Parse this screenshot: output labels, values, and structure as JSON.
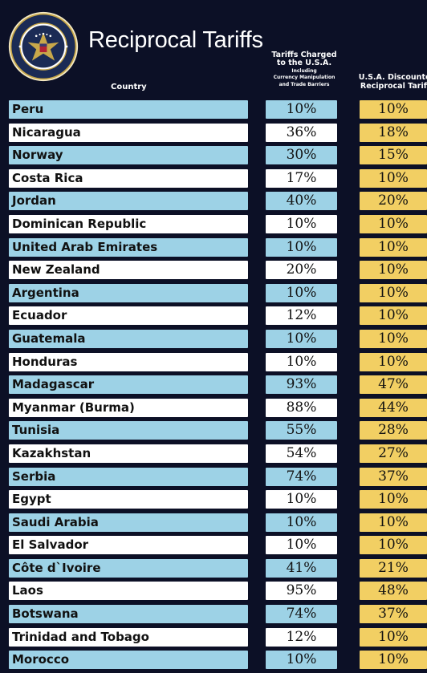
{
  "header": {
    "title": "Reciprocal Tariffs",
    "seal_text": "SEAL OF THE PRESIDENT OF THE UNITED STATES",
    "col_country": "Country",
    "col_charged_line1": "Tariffs Charged",
    "col_charged_line2": "to the U.S.A.",
    "col_charged_note1": "Including",
    "col_charged_note2": "Currency Manipulation",
    "col_charged_note3": "and Trade Barriers",
    "col_recip_line1": "U.S.A. Discounted",
    "col_recip_line2": "Reciprocal Tariffs"
  },
  "colors": {
    "background": "#0c1026",
    "blue_row": "#9dd2e6",
    "white_row": "#ffffff",
    "gold": "#f2cf63"
  },
  "rows": [
    {
      "country": "Peru",
      "charged": "10%",
      "reciprocal": "10%"
    },
    {
      "country": "Nicaragua",
      "charged": "36%",
      "reciprocal": "18%"
    },
    {
      "country": "Norway",
      "charged": "30%",
      "reciprocal": "15%"
    },
    {
      "country": "Costa Rica",
      "charged": "17%",
      "reciprocal": "10%"
    },
    {
      "country": "Jordan",
      "charged": "40%",
      "reciprocal": "20%"
    },
    {
      "country": "Dominican Republic",
      "charged": "10%",
      "reciprocal": "10%"
    },
    {
      "country": "United Arab Emirates",
      "charged": "10%",
      "reciprocal": "10%"
    },
    {
      "country": "New Zealand",
      "charged": "20%",
      "reciprocal": "10%"
    },
    {
      "country": "Argentina",
      "charged": "10%",
      "reciprocal": "10%"
    },
    {
      "country": "Ecuador",
      "charged": "12%",
      "reciprocal": "10%"
    },
    {
      "country": "Guatemala",
      "charged": "10%",
      "reciprocal": "10%"
    },
    {
      "country": "Honduras",
      "charged": "10%",
      "reciprocal": "10%"
    },
    {
      "country": "Madagascar",
      "charged": "93%",
      "reciprocal": "47%"
    },
    {
      "country": "Myanmar (Burma)",
      "charged": "88%",
      "reciprocal": "44%"
    },
    {
      "country": "Tunisia",
      "charged": "55%",
      "reciprocal": "28%"
    },
    {
      "country": "Kazakhstan",
      "charged": "54%",
      "reciprocal": "27%"
    },
    {
      "country": "Serbia",
      "charged": "74%",
      "reciprocal": "37%"
    },
    {
      "country": "Egypt",
      "charged": "10%",
      "reciprocal": "10%"
    },
    {
      "country": "Saudi Arabia",
      "charged": "10%",
      "reciprocal": "10%"
    },
    {
      "country": "El Salvador",
      "charged": "10%",
      "reciprocal": "10%"
    },
    {
      "country": "Côte d`Ivoire",
      "charged": "41%",
      "reciprocal": "21%"
    },
    {
      "country": "Laos",
      "charged": "95%",
      "reciprocal": "48%"
    },
    {
      "country": "Botswana",
      "charged": "74%",
      "reciprocal": "37%"
    },
    {
      "country": "Trinidad and Tobago",
      "charged": "12%",
      "reciprocal": "10%"
    },
    {
      "country": "Morocco",
      "charged": "10%",
      "reciprocal": "10%"
    }
  ]
}
